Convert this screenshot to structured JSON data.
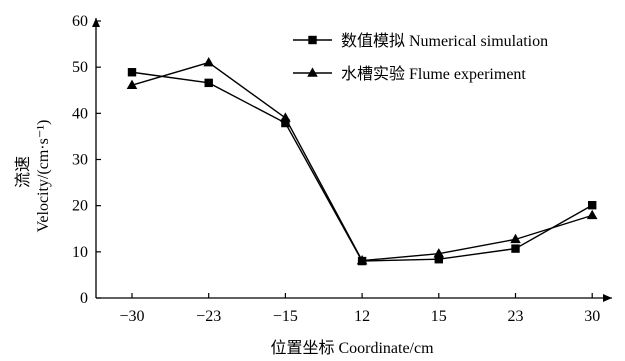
{
  "chart_data": {
    "type": "line",
    "categories": [
      "−30",
      "−23",
      "−15",
      "12",
      "15",
      "23",
      "30"
    ],
    "xlabel": "位置坐标 Coordinate/cm",
    "ylabel_line1": "流速",
    "ylabel_line2": "Velocity/(cm·s⁻¹)",
    "ylim": [
      0,
      60
    ],
    "yticks": [
      "0",
      "10",
      "20",
      "30",
      "40",
      "50",
      "60"
    ],
    "grid": false,
    "legend_position": "top-right",
    "series": [
      {
        "name": "数值模拟 Numerical simulation",
        "marker": "square",
        "values": [
          48.9,
          46.6,
          37.9,
          8.0,
          8.4,
          10.7,
          20.1
        ]
      },
      {
        "name": "水槽实验 Flume experiment",
        "marker": "triangle",
        "values": [
          46.1,
          51.0,
          39.0,
          8.1,
          9.6,
          12.7,
          17.9
        ]
      }
    ],
    "colors": {
      "line": "#000000",
      "background": "#ffffff"
    }
  }
}
